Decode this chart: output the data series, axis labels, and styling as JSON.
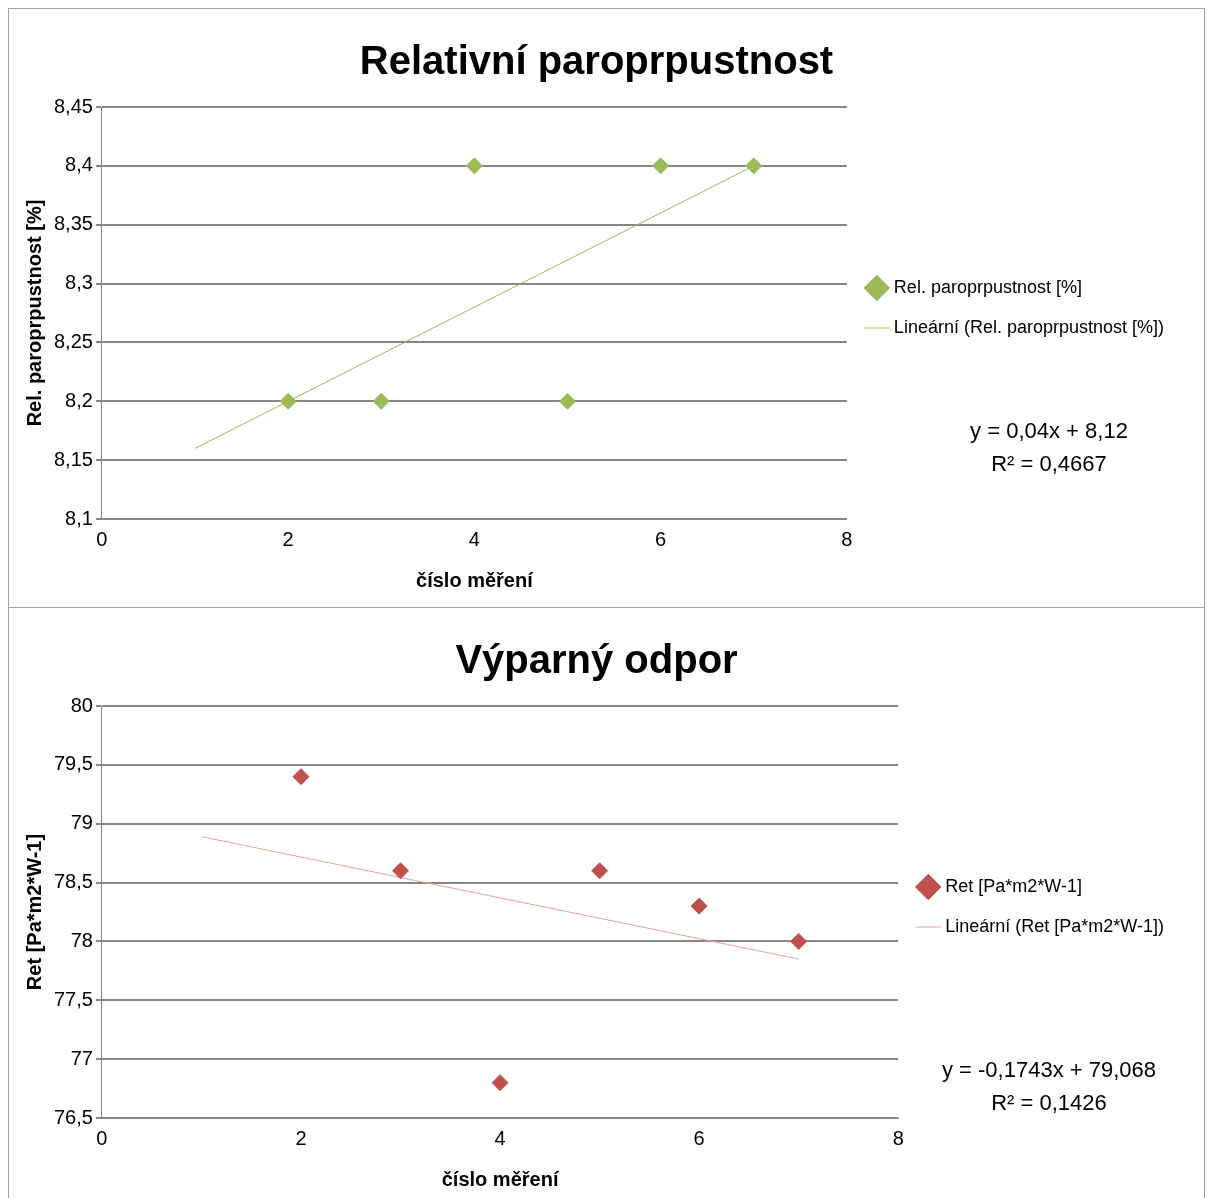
{
  "chart_data": [
    {
      "type": "scatter",
      "title": "Relativní paroprpustnost",
      "xlabel": "číslo měření",
      "ylabel": "Rel. paroprpustnost [%]",
      "xlim": [
        0,
        8
      ],
      "xticks": [
        0,
        2,
        4,
        6,
        8
      ],
      "ylim": [
        8.1,
        8.45
      ],
      "yticks": [
        {
          "value": 8.1,
          "label": "8,1"
        },
        {
          "value": 8.15,
          "label": "8,15"
        },
        {
          "value": 8.2,
          "label": "8,2"
        },
        {
          "value": 8.25,
          "label": "8,25"
        },
        {
          "value": 8.3,
          "label": "8,3"
        },
        {
          "value": 8.35,
          "label": "8,35"
        },
        {
          "value": 8.4,
          "label": "8,4"
        },
        {
          "value": 8.45,
          "label": "8,45"
        }
      ],
      "grid": "y",
      "legend": "right",
      "marker": "diamond",
      "annotations": [
        "y = 0,04x + 8,12",
        "R² = 0,4667"
      ],
      "series": [
        {
          "name": "Rel. paroprpustnost [%]",
          "type": "scatter",
          "color": "#9bbb59",
          "x": [
            2,
            3,
            4,
            5,
            6,
            7
          ],
          "values": [
            8.2,
            8.2,
            8.4,
            8.2,
            8.4,
            8.4
          ]
        },
        {
          "name": "Lineární (Rel. paroprpustnost [%])",
          "type": "line",
          "color": "#9bbb59",
          "marker": "none",
          "x": [
            1,
            7
          ],
          "values": [
            8.16,
            8.4
          ]
        }
      ]
    },
    {
      "type": "scatter",
      "title": "Výparný odpor",
      "xlabel": "číslo měření",
      "ylabel": "Ret [Pa*m2*W-1]",
      "xlim": [
        0,
        8
      ],
      "xticks": [
        0,
        2,
        4,
        6,
        8
      ],
      "ylim": [
        76.5,
        80
      ],
      "yticks": [
        {
          "value": 76.5,
          "label": "76,5"
        },
        77,
        {
          "value": 77.5,
          "label": "77,5"
        },
        78,
        {
          "value": 78.5,
          "label": "78,5"
        },
        79,
        {
          "value": 79.5,
          "label": "79,5"
        },
        80
      ],
      "grid": "y",
      "legend": "right",
      "marker": "diamond",
      "annotations": [
        "y = -0,1743x + 79,068",
        "R² = 0,1426"
      ],
      "series": [
        {
          "name": "Ret [Pa*m2*W-1]",
          "type": "scatter",
          "color": "#c0504d",
          "x": [
            2,
            3,
            4,
            5,
            6,
            7
          ],
          "values": [
            79.4,
            78.6,
            76.8,
            78.6,
            78.3,
            78.0
          ]
        },
        {
          "name": "Lineární (Ret [Pa*m2*W-1])",
          "type": "line",
          "color": "#e6a3a1",
          "marker": "none",
          "x": [
            1,
            7
          ],
          "values": [
            78.89,
            77.85
          ]
        }
      ]
    }
  ]
}
